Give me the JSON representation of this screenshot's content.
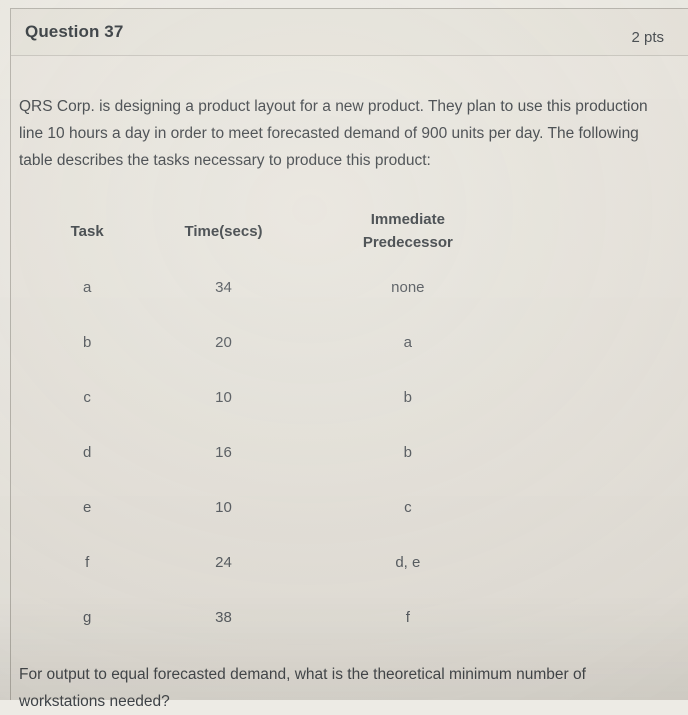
{
  "colors": {
    "page_bg": "#edebe5",
    "card_bg": "#eae7e0",
    "header_bg": "#e7e4dc",
    "title_text": "#30363b",
    "body_text": "#3d4247"
  },
  "header": {
    "title": "Question 37",
    "points": "2 pts"
  },
  "question": {
    "intro": "QRS Corp. is designing a product layout for a new product. They plan to use this production line 10 hours a day in order to meet forecasted demand of 900 units per day. The following table describes the tasks necessary to produce this product:",
    "prompt": "For output to equal forecasted demand, what is the theoretical minimum number of workstations needed?"
  },
  "table": {
    "columns": [
      "Task",
      "Time(secs)",
      "Immediate Predecessor"
    ],
    "rows": [
      {
        "task": "a",
        "time": "34",
        "predecessor": "none"
      },
      {
        "task": "b",
        "time": "20",
        "predecessor": "a"
      },
      {
        "task": "c",
        "time": "10",
        "predecessor": "b"
      },
      {
        "task": "d",
        "time": "16",
        "predecessor": "b"
      },
      {
        "task": "e",
        "time": "10",
        "predecessor": "c"
      },
      {
        "task": "f",
        "time": "24",
        "predecessor": "d, e"
      },
      {
        "task": "g",
        "time": "38",
        "predecessor": "f"
      }
    ]
  }
}
